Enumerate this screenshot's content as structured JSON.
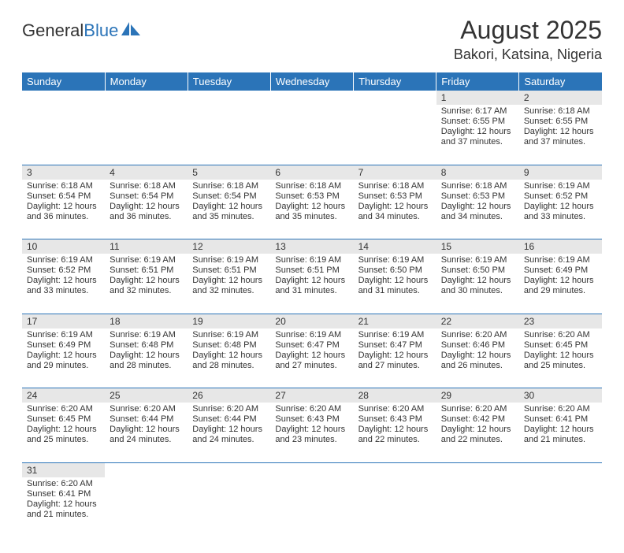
{
  "brand": {
    "part1": "General",
    "part2": "Blue"
  },
  "title": "August 2025",
  "location": "Bakori, Katsina, Nigeria",
  "colors": {
    "header_bg": "#2b74b8",
    "header_text": "#ffffff",
    "daynum_bg": "#e7e7e7",
    "text": "#333333",
    "row_divider": "#2b74b8"
  },
  "day_headers": [
    "Sunday",
    "Monday",
    "Tuesday",
    "Wednesday",
    "Thursday",
    "Friday",
    "Saturday"
  ],
  "weeks": [
    [
      null,
      null,
      null,
      null,
      null,
      {
        "n": "1",
        "sr": "Sunrise: 6:17 AM",
        "ss": "Sunset: 6:55 PM",
        "d1": "Daylight: 12 hours",
        "d2": "and 37 minutes."
      },
      {
        "n": "2",
        "sr": "Sunrise: 6:18 AM",
        "ss": "Sunset: 6:55 PM",
        "d1": "Daylight: 12 hours",
        "d2": "and 37 minutes."
      }
    ],
    [
      {
        "n": "3",
        "sr": "Sunrise: 6:18 AM",
        "ss": "Sunset: 6:54 PM",
        "d1": "Daylight: 12 hours",
        "d2": "and 36 minutes."
      },
      {
        "n": "4",
        "sr": "Sunrise: 6:18 AM",
        "ss": "Sunset: 6:54 PM",
        "d1": "Daylight: 12 hours",
        "d2": "and 36 minutes."
      },
      {
        "n": "5",
        "sr": "Sunrise: 6:18 AM",
        "ss": "Sunset: 6:54 PM",
        "d1": "Daylight: 12 hours",
        "d2": "and 35 minutes."
      },
      {
        "n": "6",
        "sr": "Sunrise: 6:18 AM",
        "ss": "Sunset: 6:53 PM",
        "d1": "Daylight: 12 hours",
        "d2": "and 35 minutes."
      },
      {
        "n": "7",
        "sr": "Sunrise: 6:18 AM",
        "ss": "Sunset: 6:53 PM",
        "d1": "Daylight: 12 hours",
        "d2": "and 34 minutes."
      },
      {
        "n": "8",
        "sr": "Sunrise: 6:18 AM",
        "ss": "Sunset: 6:53 PM",
        "d1": "Daylight: 12 hours",
        "d2": "and 34 minutes."
      },
      {
        "n": "9",
        "sr": "Sunrise: 6:19 AM",
        "ss": "Sunset: 6:52 PM",
        "d1": "Daylight: 12 hours",
        "d2": "and 33 minutes."
      }
    ],
    [
      {
        "n": "10",
        "sr": "Sunrise: 6:19 AM",
        "ss": "Sunset: 6:52 PM",
        "d1": "Daylight: 12 hours",
        "d2": "and 33 minutes."
      },
      {
        "n": "11",
        "sr": "Sunrise: 6:19 AM",
        "ss": "Sunset: 6:51 PM",
        "d1": "Daylight: 12 hours",
        "d2": "and 32 minutes."
      },
      {
        "n": "12",
        "sr": "Sunrise: 6:19 AM",
        "ss": "Sunset: 6:51 PM",
        "d1": "Daylight: 12 hours",
        "d2": "and 32 minutes."
      },
      {
        "n": "13",
        "sr": "Sunrise: 6:19 AM",
        "ss": "Sunset: 6:51 PM",
        "d1": "Daylight: 12 hours",
        "d2": "and 31 minutes."
      },
      {
        "n": "14",
        "sr": "Sunrise: 6:19 AM",
        "ss": "Sunset: 6:50 PM",
        "d1": "Daylight: 12 hours",
        "d2": "and 31 minutes."
      },
      {
        "n": "15",
        "sr": "Sunrise: 6:19 AM",
        "ss": "Sunset: 6:50 PM",
        "d1": "Daylight: 12 hours",
        "d2": "and 30 minutes."
      },
      {
        "n": "16",
        "sr": "Sunrise: 6:19 AM",
        "ss": "Sunset: 6:49 PM",
        "d1": "Daylight: 12 hours",
        "d2": "and 29 minutes."
      }
    ],
    [
      {
        "n": "17",
        "sr": "Sunrise: 6:19 AM",
        "ss": "Sunset: 6:49 PM",
        "d1": "Daylight: 12 hours",
        "d2": "and 29 minutes."
      },
      {
        "n": "18",
        "sr": "Sunrise: 6:19 AM",
        "ss": "Sunset: 6:48 PM",
        "d1": "Daylight: 12 hours",
        "d2": "and 28 minutes."
      },
      {
        "n": "19",
        "sr": "Sunrise: 6:19 AM",
        "ss": "Sunset: 6:48 PM",
        "d1": "Daylight: 12 hours",
        "d2": "and 28 minutes."
      },
      {
        "n": "20",
        "sr": "Sunrise: 6:19 AM",
        "ss": "Sunset: 6:47 PM",
        "d1": "Daylight: 12 hours",
        "d2": "and 27 minutes."
      },
      {
        "n": "21",
        "sr": "Sunrise: 6:19 AM",
        "ss": "Sunset: 6:47 PM",
        "d1": "Daylight: 12 hours",
        "d2": "and 27 minutes."
      },
      {
        "n": "22",
        "sr": "Sunrise: 6:20 AM",
        "ss": "Sunset: 6:46 PM",
        "d1": "Daylight: 12 hours",
        "d2": "and 26 minutes."
      },
      {
        "n": "23",
        "sr": "Sunrise: 6:20 AM",
        "ss": "Sunset: 6:45 PM",
        "d1": "Daylight: 12 hours",
        "d2": "and 25 minutes."
      }
    ],
    [
      {
        "n": "24",
        "sr": "Sunrise: 6:20 AM",
        "ss": "Sunset: 6:45 PM",
        "d1": "Daylight: 12 hours",
        "d2": "and 25 minutes."
      },
      {
        "n": "25",
        "sr": "Sunrise: 6:20 AM",
        "ss": "Sunset: 6:44 PM",
        "d1": "Daylight: 12 hours",
        "d2": "and 24 minutes."
      },
      {
        "n": "26",
        "sr": "Sunrise: 6:20 AM",
        "ss": "Sunset: 6:44 PM",
        "d1": "Daylight: 12 hours",
        "d2": "and 24 minutes."
      },
      {
        "n": "27",
        "sr": "Sunrise: 6:20 AM",
        "ss": "Sunset: 6:43 PM",
        "d1": "Daylight: 12 hours",
        "d2": "and 23 minutes."
      },
      {
        "n": "28",
        "sr": "Sunrise: 6:20 AM",
        "ss": "Sunset: 6:43 PM",
        "d1": "Daylight: 12 hours",
        "d2": "and 22 minutes."
      },
      {
        "n": "29",
        "sr": "Sunrise: 6:20 AM",
        "ss": "Sunset: 6:42 PM",
        "d1": "Daylight: 12 hours",
        "d2": "and 22 minutes."
      },
      {
        "n": "30",
        "sr": "Sunrise: 6:20 AM",
        "ss": "Sunset: 6:41 PM",
        "d1": "Daylight: 12 hours",
        "d2": "and 21 minutes."
      }
    ],
    [
      {
        "n": "31",
        "sr": "Sunrise: 6:20 AM",
        "ss": "Sunset: 6:41 PM",
        "d1": "Daylight: 12 hours",
        "d2": "and 21 minutes."
      },
      null,
      null,
      null,
      null,
      null,
      null
    ]
  ]
}
